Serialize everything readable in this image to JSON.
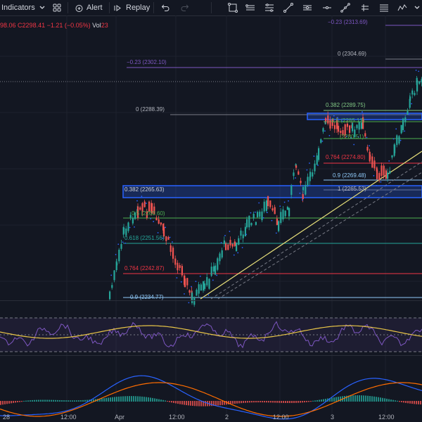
{
  "toolbar": {
    "indicators_label": "Indicators",
    "alert_label": "Alert",
    "replay_label": "Replay",
    "icons": [
      "chevron-down-icon",
      "layout-grid-icon",
      "alarm-plus-icon",
      "replay-icon",
      "undo-icon",
      "redo-icon",
      "crosshair-select-icon",
      "rectangle-icon",
      "fib-channel-icon",
      "trendline-icon",
      "brush-icon",
      "horizontal-line-icon",
      "path-icon",
      "fib-retracement-icon",
      "zigzag-icon"
    ]
  },
  "legend": {
    "price_partial": "98.06",
    "close": "C2298.41",
    "change": "−1.21 (−0.05%)",
    "vol_label": "Vol",
    "vol_value": "23"
  },
  "fib_labels": [
    {
      "text": "−0.23 (2313.69)",
      "color": "#7e57c2"
    },
    {
      "text": "0 (2304.69)",
      "color": "#b2b5be"
    },
    {
      "text": "−0.23 (2302.10)",
      "color": "#7e57c2"
    },
    {
      "text": "0 (2288.39)",
      "color": "#b2b5be"
    },
    {
      "text": "0.382 (2289.75)",
      "color": "#81c784"
    },
    {
      "text": "0.5 (2285.13)",
      "color": "#4caf50"
    },
    {
      "text": "(2280.51)",
      "color": "#4caf50"
    },
    {
      "text": "0.764 (2274.80)",
      "color": "#f23645"
    },
    {
      "text": "0.9 (2269.48)",
      "color": "#90caf9"
    },
    {
      "text": "1 (2265.53)",
      "color": "#b2b5be"
    },
    {
      "text": "0.382 (2265.63)",
      "color": "#d1d4dc"
    },
    {
      "text": "0.5 (2260.60)",
      "color": "#4caf50"
    },
    {
      "text": "0.618 (2251.56)",
      "color": "#26a69a"
    },
    {
      "text": "0.764 (2242.87)",
      "color": "#f23645"
    },
    {
      "text": "0.9 (2234.77)",
      "color": "#90caf9"
    }
  ],
  "x_axis": [
    "28",
    "12:00",
    "Apr",
    "12:00",
    "2",
    "12:00",
    "3",
    "12:00"
  ],
  "colors": {
    "up": "#26a69a",
    "down": "#ef5350",
    "rsi": "#7e57c2",
    "macd": "#2962ff",
    "signal": "#ff6d00"
  }
}
